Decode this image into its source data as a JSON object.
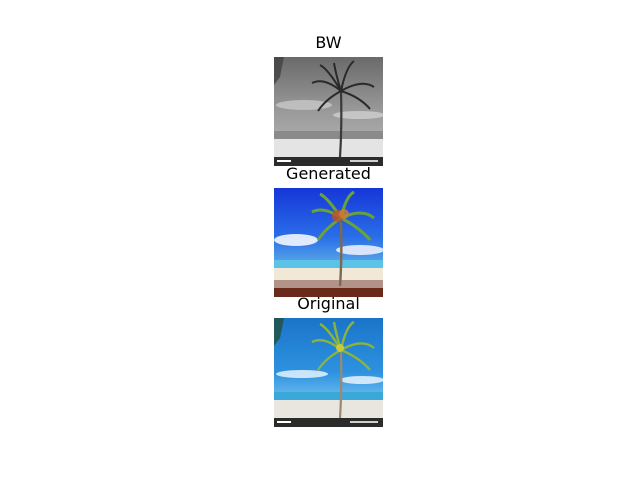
{
  "panels": [
    {
      "title": "BW",
      "style": "grayscale"
    },
    {
      "title": "Generated",
      "style": "generated"
    },
    {
      "title": "Original",
      "style": "original"
    }
  ],
  "colors": {
    "background": "#ffffff",
    "original_sky": "#1e88d6",
    "generated_sky": "#1646e0",
    "bw_sky": "#7a7a7a",
    "palm_leaves": "#7ea832",
    "footer_bar": "#2b2b2b"
  }
}
